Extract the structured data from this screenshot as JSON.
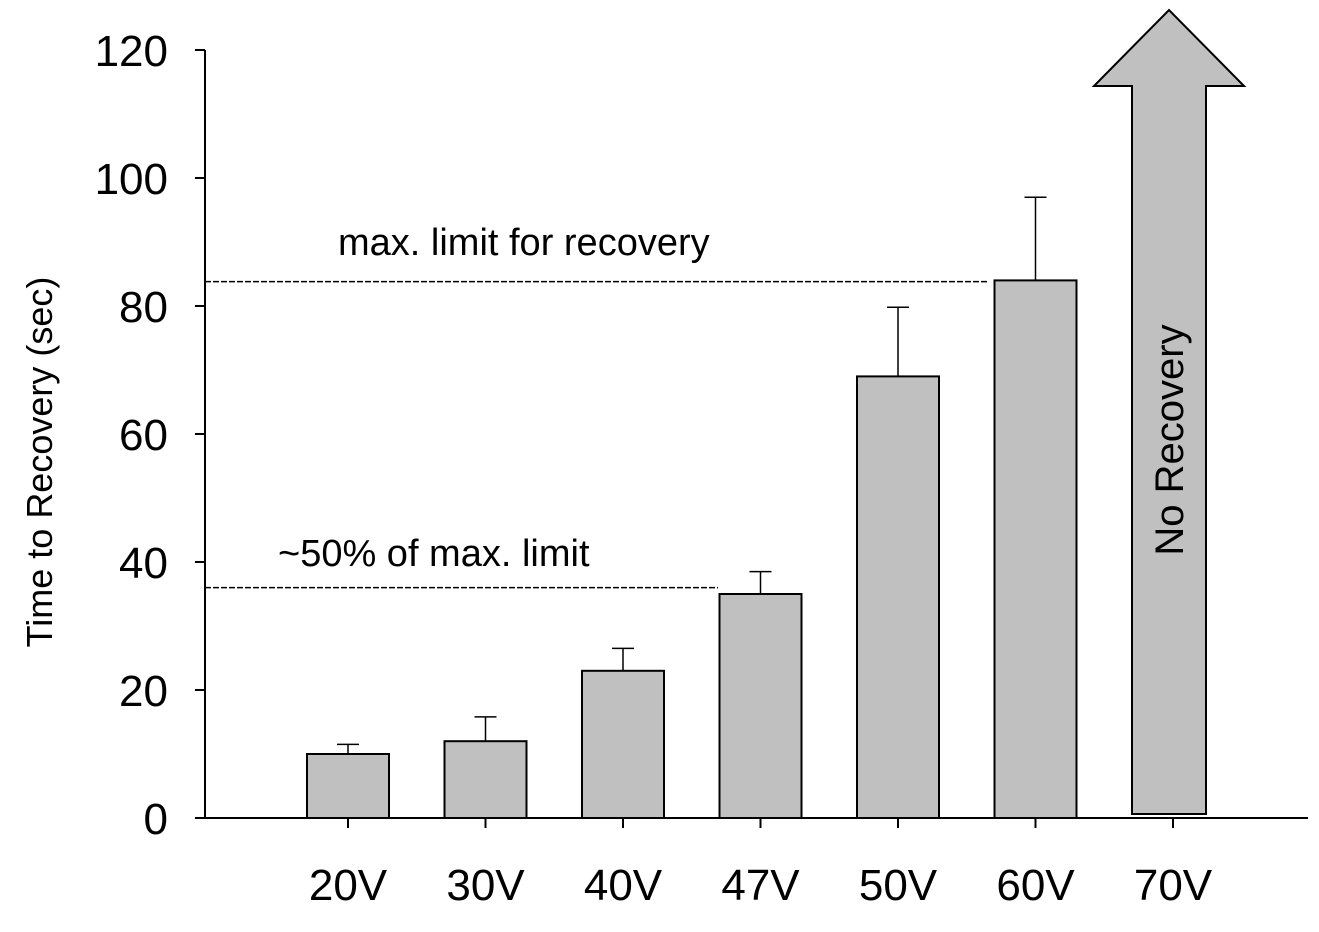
{
  "chart_data": {
    "type": "bar",
    "ylabel": "Time to Recovery (sec)",
    "ylim": [
      0,
      120
    ],
    "yticks": [
      "0",
      "20",
      "40",
      "60",
      "80",
      "100",
      "120"
    ],
    "categories": [
      "20V",
      "30V",
      "40V",
      "47V",
      "50V",
      "60V",
      "70V"
    ],
    "values": [
      10,
      12,
      23,
      35,
      69,
      84,
      null
    ],
    "error_upper": [
      11.5,
      15.8,
      26.5,
      38.5,
      79.8,
      97
    ],
    "bar_color": "#c0c0c0",
    "annotations": [
      {
        "text": "max. limit for recovery",
        "y": 83.8
      },
      {
        "text": "~50% of max. limit",
        "y": 36
      }
    ],
    "no_recovery": {
      "category": "70V",
      "label": "No Recovery"
    }
  }
}
